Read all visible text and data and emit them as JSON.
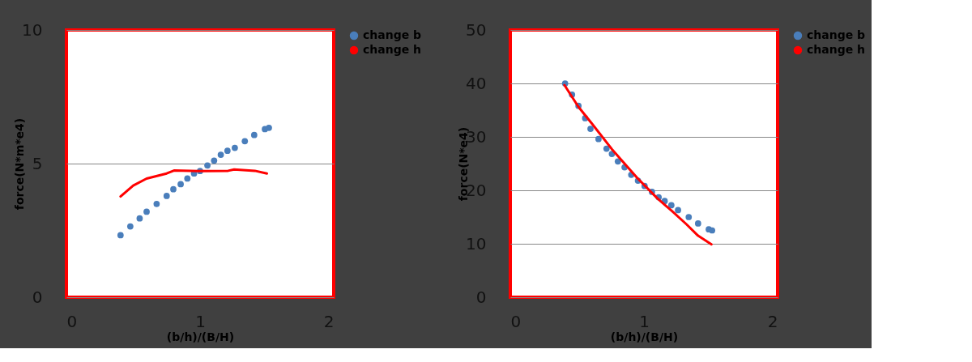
{
  "chart_data": [
    {
      "type": "scatter",
      "xlabel": "(b/h)/(B/H)",
      "ylabel": "force(N*m*e4)",
      "xlim": [
        0,
        2
      ],
      "xticks": [
        0,
        1,
        2
      ],
      "ylim": [
        0,
        10
      ],
      "yticks": [
        0,
        5,
        10
      ],
      "grid": "y",
      "legend": "right",
      "series": [
        {
          "name": "change b",
          "marker": "circle",
          "color": "#4a7ebb",
          "x": [
            0.405,
            0.478,
            0.548,
            0.6,
            0.675,
            0.75,
            0.8,
            0.855,
            0.905,
            0.955,
            1.0,
            1.055,
            1.105,
            1.155,
            1.205,
            1.26,
            1.335,
            1.405,
            1.485,
            1.515
          ],
          "values": [
            2.32,
            2.65,
            2.95,
            3.2,
            3.49,
            3.79,
            4.04,
            4.23,
            4.44,
            4.63,
            4.72,
            4.93,
            5.11,
            5.33,
            5.48,
            5.59,
            5.84,
            6.07,
            6.29,
            6.34
          ]
        },
        {
          "name": "change h",
          "type": "line",
          "color": "#ff0000",
          "x": [
            0.405,
            0.5,
            0.6,
            0.75,
            0.805,
            0.99,
            1.21,
            1.255,
            1.41,
            1.5
          ],
          "values": [
            3.77,
            4.18,
            4.44,
            4.63,
            4.74,
            4.72,
            4.73,
            4.78,
            4.73,
            4.63
          ]
        }
      ]
    },
    {
      "type": "scatter",
      "xlabel": "(b/h)/(B/H)",
      "ylabel": "force(N*e4)",
      "xlim": [
        0,
        2
      ],
      "xticks": [
        0,
        1,
        2
      ],
      "ylim": [
        0,
        50
      ],
      "yticks": [
        0,
        10,
        20,
        30,
        40,
        50
      ],
      "grid": "y",
      "legend": "right",
      "series": [
        {
          "name": "change b",
          "marker": "circle",
          "color": "#4a7ebb",
          "x": [
            0.41,
            0.462,
            0.51,
            0.56,
            0.6,
            0.66,
            0.72,
            0.76,
            0.805,
            0.855,
            0.905,
            0.955,
            1.005,
            1.06,
            1.11,
            1.155,
            1.205,
            1.255,
            1.335,
            1.405,
            1.485,
            1.51
          ],
          "values": [
            40.0,
            37.9,
            35.8,
            33.5,
            31.5,
            29.6,
            27.8,
            26.8,
            25.4,
            24.3,
            22.9,
            21.8,
            20.8,
            19.7,
            18.7,
            18.0,
            17.2,
            16.3,
            15.0,
            13.8,
            12.7,
            12.5
          ]
        },
        {
          "name": "change h",
          "type": "line",
          "color": "#ff0000",
          "x": [
            0.405,
            0.51,
            0.61,
            0.76,
            0.95,
            1.1,
            1.21,
            1.32,
            1.405,
            1.505
          ],
          "values": [
            39.7,
            35.6,
            32.5,
            27.7,
            22.3,
            18.5,
            16.1,
            13.6,
            11.5,
            9.9
          ]
        }
      ]
    }
  ]
}
